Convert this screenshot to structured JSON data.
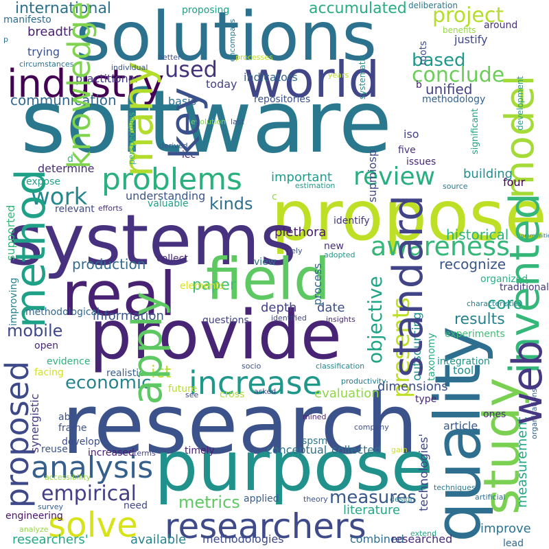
{
  "words": [
    {
      "text": "software",
      "color": "#2a788e"
    },
    {
      "text": "research",
      "color": "#3b528b"
    },
    {
      "text": "solutions",
      "color": "#2c728e"
    },
    {
      "text": "propose",
      "color": "#bddf26"
    },
    {
      "text": "systems",
      "color": "#46327e"
    },
    {
      "text": "provide",
      "color": "#482475"
    },
    {
      "text": "purpose",
      "color": "#21918c"
    },
    {
      "text": "quality",
      "color": "#2e6e8e"
    },
    {
      "text": "real",
      "color": "#482173"
    },
    {
      "text": "field",
      "color": "#5ec962"
    },
    {
      "text": "world",
      "color": "#404688"
    },
    {
      "text": "industry",
      "color": "#440154"
    },
    {
      "text": "model",
      "color": "#a5db36"
    },
    {
      "text": "study",
      "color": "#7ad151"
    },
    {
      "text": "researchers",
      "color": "#3e4a89"
    },
    {
      "text": "increase",
      "color": "#1f988b"
    },
    {
      "text": "problems",
      "color": "#2ab07f"
    },
    {
      "text": "awareness",
      "color": "#35b779"
    },
    {
      "text": "solve",
      "color": "#d8e219"
    },
    {
      "text": "proposed",
      "color": "#3e4989"
    },
    {
      "text": "analysis",
      "color": "#355f8d"
    },
    {
      "text": "review",
      "color": "#29af7f"
    },
    {
      "text": "presents",
      "color": "#bddf26"
    },
    {
      "text": "work",
      "color": "#24878e"
    },
    {
      "text": "used",
      "color": "#46337e"
    },
    {
      "text": "project",
      "color": "#b5de2b"
    },
    {
      "text": "conclude",
      "color": "#6ccd5a"
    },
    {
      "text": "based",
      "color": "#1f978b"
    },
    {
      "text": "objective",
      "color": "#20a486"
    },
    {
      "text": "empirical",
      "color": "#433e85"
    },
    {
      "text": "economic",
      "color": "#25848e"
    },
    {
      "text": "mobile",
      "color": "#3f4788"
    },
    {
      "text": "metrics",
      "color": "#5ec962"
    },
    {
      "text": "measures",
      "color": "#38588c"
    },
    {
      "text": "measurement",
      "color": "#22a884"
    },
    {
      "text": "paper",
      "color": "#3dbc74"
    },
    {
      "text": "core",
      "color": "#1fa188"
    },
    {
      "text": "ict",
      "color": "#b8de29"
    },
    {
      "text": "kinds",
      "color": "#2d708e"
    },
    {
      "text": "technologies'",
      "color": "#3f4889"
    },
    {
      "text": "results",
      "color": "#26828e"
    },
    {
      "text": "accumulated",
      "color": "#27ad81"
    },
    {
      "text": "international",
      "color": "#2d708e"
    },
    {
      "text": "communication",
      "color": "#31688e"
    },
    {
      "text": "production",
      "color": "#306a8e"
    },
    {
      "text": "information",
      "color": "#3a548c"
    },
    {
      "text": "recognize",
      "color": "#39568c"
    },
    {
      "text": "historical",
      "color": "#2eb37c"
    },
    {
      "text": "important",
      "color": "#1e9b8a"
    },
    {
      "text": "unified",
      "color": "#424186"
    },
    {
      "text": "breadth",
      "color": "#481f70"
    },
    {
      "text": "outsourcing",
      "color": "#21908d"
    },
    {
      "text": "plethora",
      "color": "#481b6d"
    },
    {
      "text": "building",
      "color": "#218f8d"
    },
    {
      "text": "improve",
      "color": "#2b748e"
    },
    {
      "text": "depth",
      "color": "#424186"
    },
    {
      "text": "date",
      "color": "#3d4d8a"
    },
    {
      "text": "process",
      "color": "#31688e"
    },
    {
      "text": "supported",
      "color": "#35b779"
    },
    {
      "text": "evaluation",
      "color": "#8fd744"
    },
    {
      "text": "dimensions",
      "color": "#3d4e8a"
    },
    {
      "text": "literature",
      "color": "#22a785"
    },
    {
      "text": "available",
      "color": "#25838e"
    },
    {
      "text": "combined",
      "color": "#2f6c8e"
    },
    {
      "text": "researched",
      "color": "#472c7a"
    },
    {
      "text": "methodologies",
      "color": "#3e4a89"
    },
    {
      "text": "researchers'",
      "color": "#22a884"
    },
    {
      "text": "understanding",
      "color": "#3a548c"
    },
    {
      "text": "today",
      "color": "#424186"
    },
    {
      "text": "basis",
      "color": "#2c718e"
    },
    {
      "text": "supmiosp",
      "color": "#3f4889"
    },
    {
      "text": "synergistic",
      "color": "#433d84"
    },
    {
      "text": "conceptual",
      "color": "#2d718e"
    },
    {
      "text": "collected",
      "color": "#2d708e"
    },
    {
      "text": "article",
      "color": "#38598c"
    },
    {
      "text": "practitioner",
      "color": "#453882"
    },
    {
      "text": "indicators",
      "color": "#31668e"
    },
    {
      "text": "taxonomy",
      "color": "#26ad81"
    },
    {
      "text": "methodology",
      "color": "#33638d"
    },
    {
      "text": "repositories",
      "color": "#3b518b"
    },
    {
      "text": "proposing",
      "color": "#1fa187"
    },
    {
      "text": "deliberation",
      "color": "#2a778e"
    },
    {
      "text": "around",
      "color": "#46307e"
    },
    {
      "text": "benefits",
      "color": "#95d840"
    },
    {
      "text": "justify",
      "color": "#3f4889"
    },
    {
      "text": "manifesto",
      "color": "#2e6d8e"
    },
    {
      "text": "trying",
      "color": "#3b518b"
    },
    {
      "text": "roots",
      "color": "#3c4f8a"
    },
    {
      "text": "systematic",
      "color": "#1f968b"
    },
    {
      "text": "encompass",
      "color": "#2a778e"
    },
    {
      "text": "processes",
      "color": "#c0df25"
    },
    {
      "text": "years",
      "color": "#b8de29"
    },
    {
      "text": "last",
      "color": "#39568c"
    },
    {
      "text": "significant",
      "color": "#20a386"
    },
    {
      "text": "development",
      "color": "#1f9e89"
    },
    {
      "text": "communities",
      "color": "#2c738e"
    },
    {
      "text": "iso",
      "color": "#414487"
    },
    {
      "text": "four",
      "color": "#440154"
    },
    {
      "text": "five",
      "color": "#46337f"
    },
    {
      "text": "issues",
      "color": "#482878"
    },
    {
      "text": "source",
      "color": "#2a788e"
    },
    {
      "text": "estimation",
      "color": "#1f9a8a"
    },
    {
      "text": "evolution",
      "color": "#84d44b"
    },
    {
      "text": "iec",
      "color": "#481c6e"
    },
    {
      "text": "key",
      "color": "#3b518b"
    },
    {
      "text": "derived",
      "color": "#3a548c"
    },
    {
      "text": "many",
      "color": "#b2dd2d"
    },
    {
      "text": "perspectives",
      "color": "#35b779"
    },
    {
      "text": "determine",
      "color": "#472e7c"
    },
    {
      "text": "expose",
      "color": "#1fa088"
    },
    {
      "text": "relevant",
      "color": "#3e4a89"
    },
    {
      "text": "efforts",
      "color": "#472c7a"
    },
    {
      "text": "valuable",
      "color": "#1fa088"
    },
    {
      "text": "identify",
      "color": "#46317e"
    },
    {
      "text": "new",
      "color": "#472f7d"
    },
    {
      "text": "adopted",
      "color": "#1f958b"
    },
    {
      "text": "rely",
      "color": "#3b528b"
    },
    {
      "text": "view",
      "color": "#2c728e"
    },
    {
      "text": "collect",
      "color": "#472a7a"
    },
    {
      "text": "organized",
      "color": "#29af7f"
    },
    {
      "text": "traditional",
      "color": "#453781"
    },
    {
      "text": "method",
      "color": "#1fa188"
    },
    {
      "text": "improving",
      "color": "#277f8e"
    },
    {
      "text": "methodological",
      "color": "#31678e"
    },
    {
      "text": "questions",
      "color": "#414287"
    },
    {
      "text": "identified",
      "color": "#3f4788"
    },
    {
      "text": "insights",
      "color": "#482979"
    },
    {
      "text": "elements",
      "color": "#d8e219"
    },
    {
      "text": "open",
      "color": "#482576"
    },
    {
      "text": "evidence",
      "color": "#2db27d"
    },
    {
      "text": "facing",
      "color": "#d2e21b"
    },
    {
      "text": "socio",
      "color": "#3b518b"
    },
    {
      "text": "classification",
      "color": "#23888e"
    },
    {
      "text": "realistic",
      "color": "#365d8d"
    },
    {
      "text": "future",
      "color": "#b5de2b"
    },
    {
      "text": "see",
      "color": "#3e4a89"
    },
    {
      "text": "cross",
      "color": "#b0dd2f"
    },
    {
      "text": "asked",
      "color": "#3e4a89"
    },
    {
      "text": "productivity",
      "color": "#2a778e"
    },
    {
      "text": "standard",
      "color": "#414487"
    },
    {
      "text": "experiments",
      "color": "#3dbc74"
    },
    {
      "text": "integration",
      "color": "#21908d"
    },
    {
      "text": "tool",
      "color": "#218e8d"
    },
    {
      "text": "type",
      "color": "#482475"
    },
    {
      "text": "invented",
      "color": "#35b779"
    },
    {
      "text": "organizations",
      "color": "#33628d"
    },
    {
      "text": "characteristics",
      "color": "#26828e"
    },
    {
      "text": "web",
      "color": "#453781"
    },
    {
      "text": "artificial",
      "color": "#2d708e"
    },
    {
      "text": "techniques",
      "color": "#2a788e"
    },
    {
      "text": "lead",
      "color": "#31678e"
    },
    {
      "text": "extend",
      "color": "#22a785"
    },
    {
      "text": "design",
      "color": "#26828e"
    },
    {
      "text": "theory",
      "color": "#3b518b"
    },
    {
      "text": "applied",
      "color": "#355e8d"
    },
    {
      "text": "need",
      "color": "#414487"
    },
    {
      "text": "timely",
      "color": "#482071"
    },
    {
      "text": "terms",
      "color": "#3f4788"
    },
    {
      "text": "increased",
      "color": "#482071"
    },
    {
      "text": "reuse",
      "color": "#3a548c"
    },
    {
      "text": "develop",
      "color": "#3d4d8a"
    },
    {
      "text": "apply",
      "color": "#5ec962"
    },
    {
      "text": "accessibility",
      "color": "#90d743"
    },
    {
      "text": "survey",
      "color": "#355f8d"
    },
    {
      "text": "engineering",
      "color": "#481467"
    },
    {
      "text": "analyze",
      "color": "#90d743"
    },
    {
      "text": "spsm",
      "color": "#2a788e"
    },
    {
      "text": "mined",
      "color": "#482374"
    },
    {
      "text": "company",
      "color": "#3d4e8a"
    },
    {
      "text": "gain",
      "color": "#d0e11c"
    },
    {
      "text": "able",
      "color": "#3b528b"
    },
    {
      "text": "frame",
      "color": "#3b528b"
    },
    {
      "text": "ones",
      "color": "#472d7b"
    },
    {
      "text": "d",
      "color": "#35b779"
    },
    {
      "text": "b",
      "color": "#481d6f"
    },
    {
      "text": "c",
      "color": "#8fd744"
    },
    {
      "text": "p",
      "color": "#2d708e"
    },
    {
      "text": "circumstances",
      "color": "#2c728e"
    },
    {
      "text": "better",
      "color": "#39558c"
    },
    {
      "text": "individual",
      "color": "#3b528b"
    },
    {
      "text": "knowledge",
      "color": "#7fd34e"
    },
    {
      "text": "via",
      "color": "#27ad81"
    }
  ]
}
